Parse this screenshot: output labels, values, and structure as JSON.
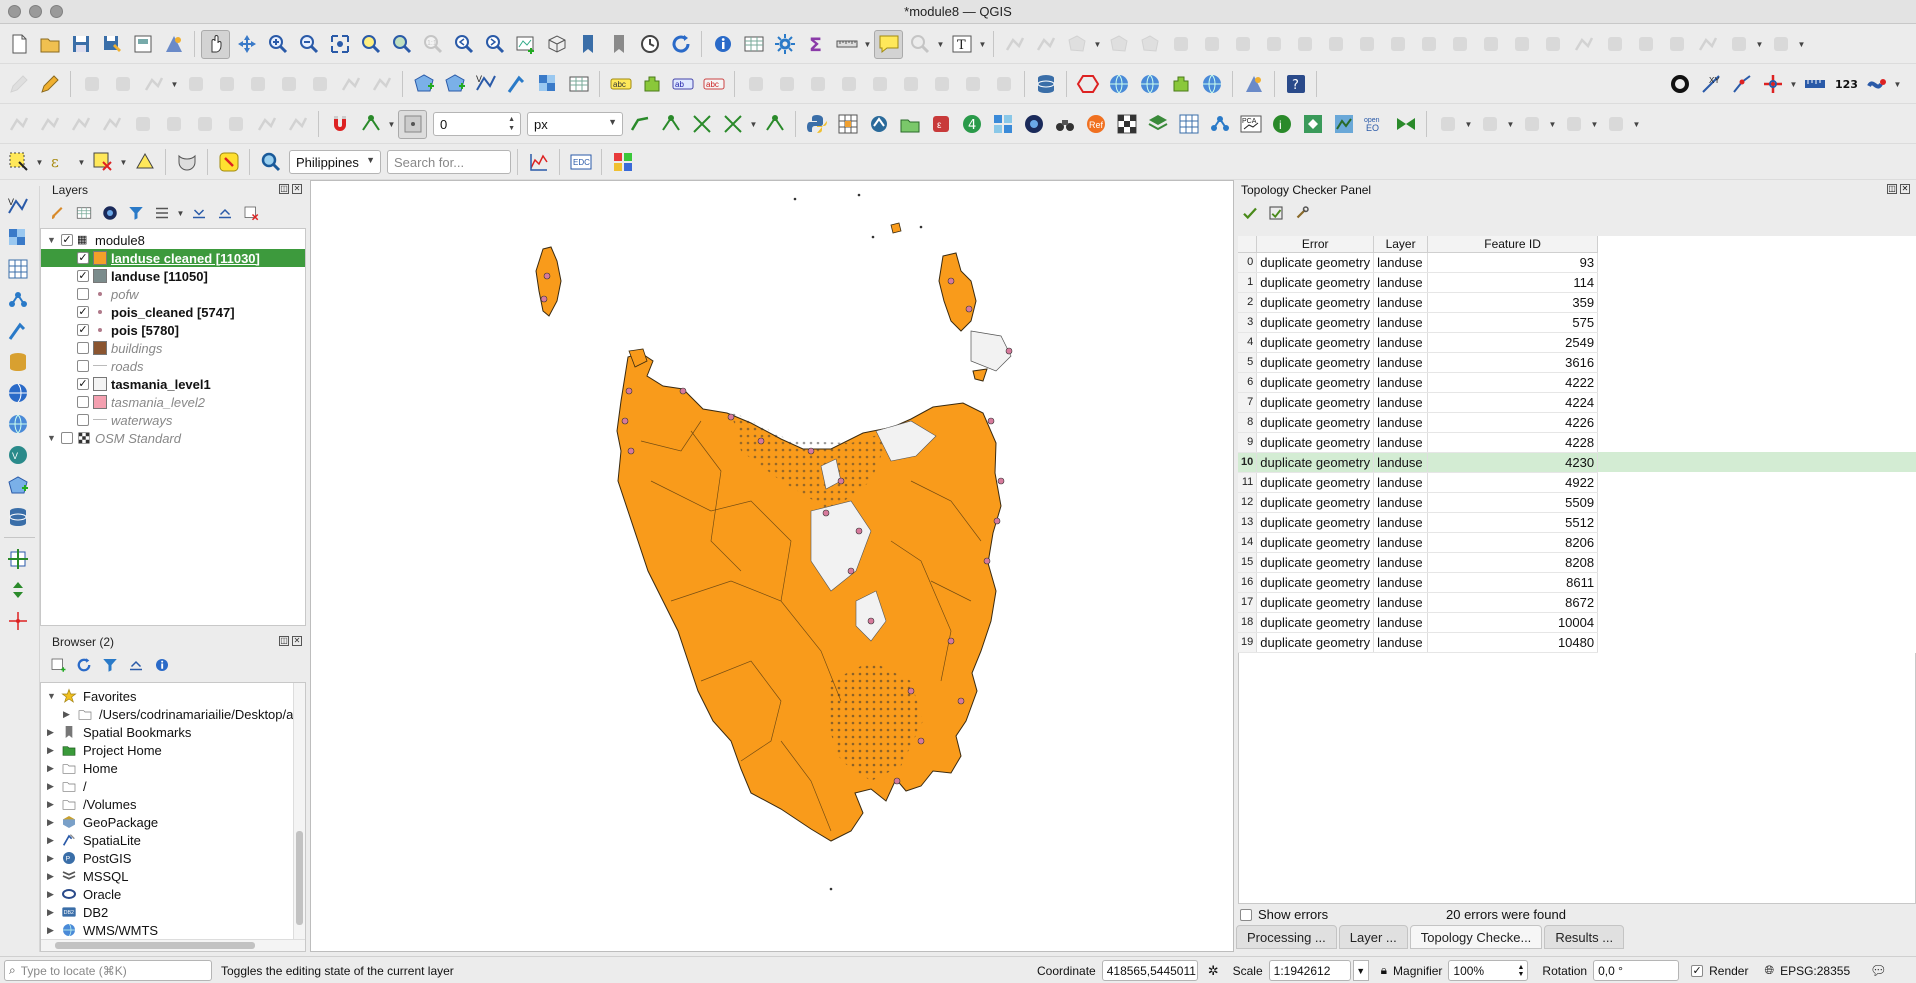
{
  "window": {
    "title": "*module8 — QGIS"
  },
  "toolbar": {
    "snap_tolerance": "0",
    "snap_unit": "px",
    "locator_scope": "Philippines",
    "search_placeholder": "Search for..."
  },
  "layers_panel": {
    "title": "Layers",
    "items": [
      {
        "label": "module8",
        "checked": true,
        "group": true
      },
      {
        "label": "landuse cleaned [11030]",
        "checked": true,
        "color": "#f3a029",
        "selected": true,
        "style": "b"
      },
      {
        "label": "landuse [11050]",
        "checked": true,
        "color": "#7b8c8c",
        "style": "b"
      },
      {
        "label": "pofw",
        "checked": false,
        "point": true,
        "style": "i"
      },
      {
        "label": "pois_cleaned [5747]",
        "checked": true,
        "point": true,
        "style": "b"
      },
      {
        "label": "pois [5780]",
        "checked": true,
        "point": true,
        "style": "b"
      },
      {
        "label": "buildings",
        "checked": false,
        "color": "#8b5530",
        "style": "i"
      },
      {
        "label": "roads",
        "checked": false,
        "line": true,
        "style": "i"
      },
      {
        "label": "tasmania_level1",
        "checked": true,
        "color": "#f4f4f4",
        "style": "b"
      },
      {
        "label": "tasmania_level2",
        "checked": false,
        "color": "#f4a0b0",
        "style": "i"
      },
      {
        "label": "waterways",
        "checked": false,
        "line": true,
        "style": "i"
      },
      {
        "label": "OSM Standard",
        "checked": false,
        "group": true,
        "style": "i"
      }
    ]
  },
  "browser_panel": {
    "title": "Browser (2)",
    "items": [
      {
        "label": "Favorites",
        "icon": "star-icon"
      },
      {
        "label": "/Users/codrinamariailie/Desktop/australia",
        "icon": "folder-icon",
        "child": true
      },
      {
        "label": "Spatial Bookmarks",
        "icon": "bookmark-icon"
      },
      {
        "label": "Project Home",
        "icon": "project-home-icon"
      },
      {
        "label": "Home",
        "icon": "folder-icon"
      },
      {
        "label": "/",
        "icon": "folder-icon"
      },
      {
        "label": "/Volumes",
        "icon": "folder-icon"
      },
      {
        "label": "GeoPackage",
        "icon": "geopackage-icon"
      },
      {
        "label": "SpatiaLite",
        "icon": "spatialite-icon"
      },
      {
        "label": "PostGIS",
        "icon": "postgis-icon"
      },
      {
        "label": "MSSQL",
        "icon": "mssql-icon"
      },
      {
        "label": "Oracle",
        "icon": "oracle-icon"
      },
      {
        "label": "DB2",
        "icon": "db2-icon"
      },
      {
        "label": "WMS/WMTS",
        "icon": "wms-icon"
      }
    ]
  },
  "topology_panel": {
    "title": "Topology Checker Panel",
    "columns": [
      "Error",
      "Layer",
      "Feature ID"
    ],
    "rows": [
      {
        "n": "0",
        "error": "duplicate geometry",
        "layer": "landuse",
        "fid": "93"
      },
      {
        "n": "1",
        "error": "duplicate geometry",
        "layer": "landuse",
        "fid": "114"
      },
      {
        "n": "2",
        "error": "duplicate geometry",
        "layer": "landuse",
        "fid": "359"
      },
      {
        "n": "3",
        "error": "duplicate geometry",
        "layer": "landuse",
        "fid": "575"
      },
      {
        "n": "4",
        "error": "duplicate geometry",
        "layer": "landuse",
        "fid": "2549"
      },
      {
        "n": "5",
        "error": "duplicate geometry",
        "layer": "landuse",
        "fid": "3616"
      },
      {
        "n": "6",
        "error": "duplicate geometry",
        "layer": "landuse",
        "fid": "4222"
      },
      {
        "n": "7",
        "error": "duplicate geometry",
        "layer": "landuse",
        "fid": "4224"
      },
      {
        "n": "8",
        "error": "duplicate geometry",
        "layer": "landuse",
        "fid": "4226"
      },
      {
        "n": "9",
        "error": "duplicate geometry",
        "layer": "landuse",
        "fid": "4228"
      },
      {
        "n": "10",
        "error": "duplicate geometry",
        "layer": "landuse",
        "fid": "4230",
        "selected": true
      },
      {
        "n": "11",
        "error": "duplicate geometry",
        "layer": "landuse",
        "fid": "4922"
      },
      {
        "n": "12",
        "error": "duplicate geometry",
        "layer": "landuse",
        "fid": "5509"
      },
      {
        "n": "13",
        "error": "duplicate geometry",
        "layer": "landuse",
        "fid": "5512"
      },
      {
        "n": "14",
        "error": "duplicate geometry",
        "layer": "landuse",
        "fid": "8206"
      },
      {
        "n": "15",
        "error": "duplicate geometry",
        "layer": "landuse",
        "fid": "8208"
      },
      {
        "n": "16",
        "error": "duplicate geometry",
        "layer": "landuse",
        "fid": "8611"
      },
      {
        "n": "17",
        "error": "duplicate geometry",
        "layer": "landuse",
        "fid": "8672"
      },
      {
        "n": "18",
        "error": "duplicate geometry",
        "layer": "landuse",
        "fid": "10004"
      },
      {
        "n": "19",
        "error": "duplicate geometry",
        "layer": "landuse",
        "fid": "10480"
      }
    ],
    "show_errors_label": "Show errors",
    "summary": "20 errors were found"
  },
  "dock_tabs": [
    "Processing ...",
    "Layer ...",
    "Topology Checke...",
    "Results ..."
  ],
  "statusbar": {
    "locate_placeholder": "Type to locate (⌘K)",
    "message": "Toggles the editing state of the current layer",
    "coordinate_label": "Coordinate",
    "coordinate_value": "418565,5445011",
    "scale_label": "Scale",
    "scale_value": "1:1942612",
    "magnifier_label": "Magnifier",
    "magnifier_value": "100%",
    "rotation_label": "Rotation",
    "rotation_value": "0,0 °",
    "render_label": "Render",
    "crs": "EPSG:28355"
  },
  "colors": {
    "landuse": "#f99b1b",
    "selection": "#3d9a3d",
    "pois": "#d77a9c",
    "background": "#f2f2f2"
  }
}
